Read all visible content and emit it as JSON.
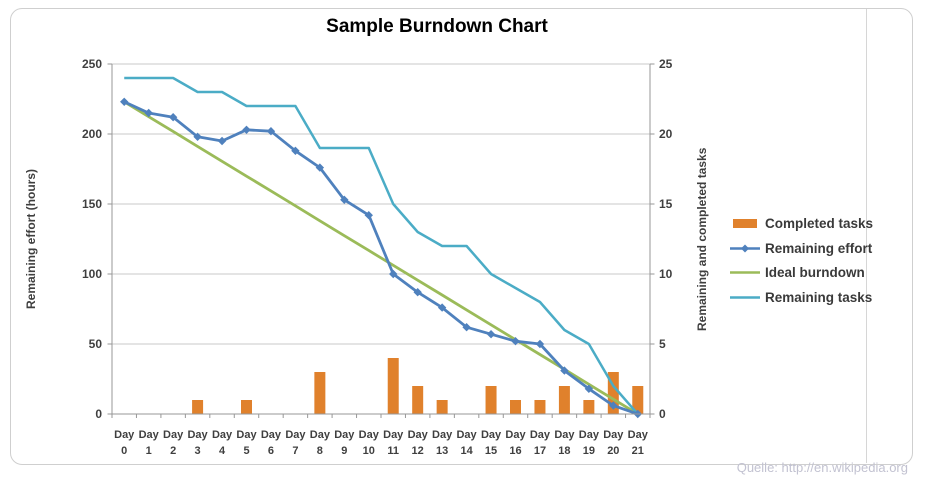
{
  "frame": {
    "source_note": "Quelle: http://en.wikipedia.org"
  },
  "chart_data": {
    "type": "combo-bar-line",
    "title": "Sample Burndown Chart",
    "x_axis": {
      "word": "Day",
      "days": [
        0,
        1,
        2,
        3,
        4,
        5,
        6,
        7,
        8,
        9,
        10,
        11,
        12,
        13,
        14,
        15,
        16,
        17,
        18,
        19,
        20,
        21
      ]
    },
    "left_axis": {
      "title": "Remaining effort (hours)",
      "min": 0,
      "max": 250,
      "ticks": [
        250,
        200,
        150,
        100,
        50,
        0
      ]
    },
    "right_axis": {
      "title": "Remaining and completed tasks",
      "min": 0,
      "max": 25,
      "ticks": [
        25,
        20,
        15,
        10,
        5,
        0
      ]
    },
    "grid": "horizontal",
    "legend_position": "right",
    "series": [
      {
        "name": "Completed tasks",
        "type": "bar",
        "axis": "right",
        "color": "#E0812C",
        "values": [
          0,
          0,
          0,
          1,
          0,
          1,
          0,
          0,
          3,
          0,
          0,
          4,
          2,
          1,
          0,
          2,
          1,
          1,
          2,
          1,
          3,
          2
        ]
      },
      {
        "name": "Remaining effort",
        "type": "line",
        "marker": "diamond",
        "axis": "left",
        "color": "#4F81BD",
        "values": [
          223,
          215,
          212,
          198,
          195,
          203,
          202,
          188,
          176,
          153,
          142,
          100,
          87,
          76,
          62,
          57,
          52,
          50,
          31,
          18,
          6,
          0
        ]
      },
      {
        "name": "Ideal burndown",
        "type": "line",
        "marker": "none",
        "axis": "left",
        "color": "#9BBB59",
        "values": [
          223,
          212.4,
          201.8,
          191.1,
          180.5,
          169.9,
          159.3,
          148.7,
          138,
          127.4,
          116.8,
          106.2,
          95.6,
          85,
          74.3,
          63.7,
          53.1,
          42.5,
          31.9,
          21.2,
          10.6,
          0
        ]
      },
      {
        "name": "Remaining tasks",
        "type": "line",
        "marker": "none",
        "axis": "right",
        "color": "#4BACC6",
        "values": [
          24,
          24,
          24,
          23,
          23,
          22,
          22,
          22,
          19,
          19,
          19,
          15,
          13,
          12,
          12,
          10,
          9,
          8,
          6,
          5,
          2,
          0
        ]
      }
    ],
    "colors": {
      "gridline": "#C9C9C9",
      "axis_line": "#979797",
      "tick_text": "#3F3F3F",
      "title_text": "#000000",
      "source_text": "#C2C2D1",
      "frame_border": "#CFCFCF",
      "background": "#FFFFFF"
    }
  }
}
